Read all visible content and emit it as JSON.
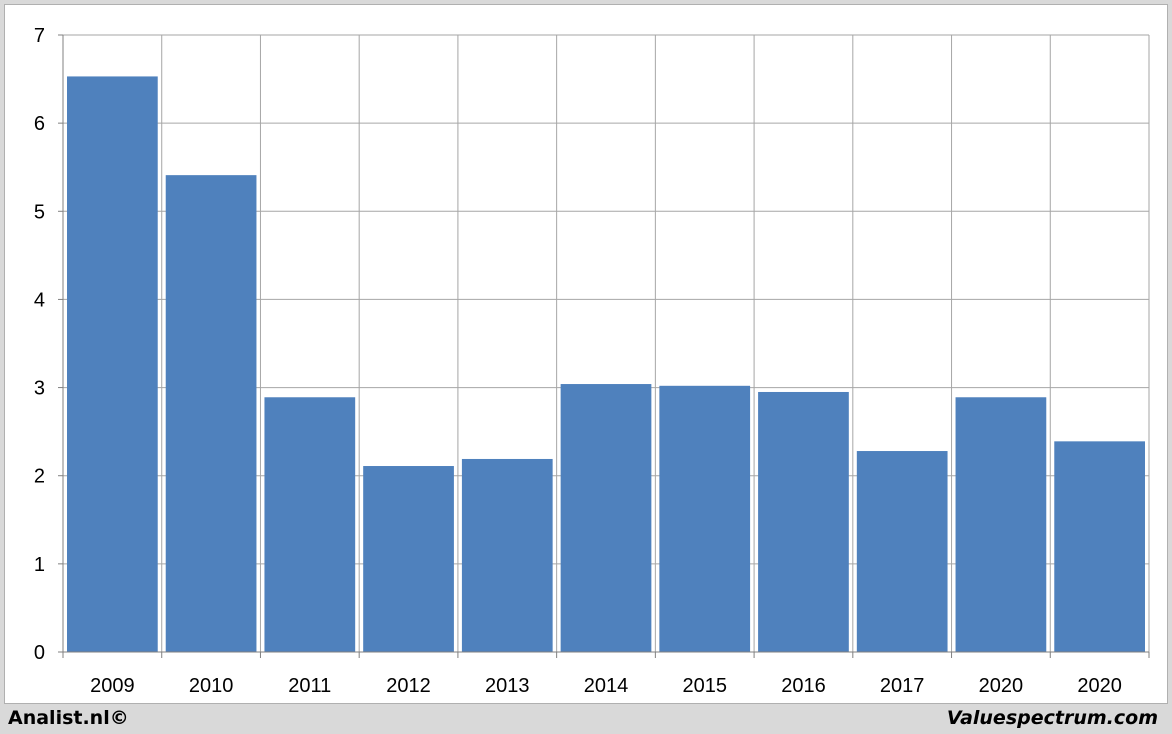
{
  "chart_data": {
    "type": "bar",
    "categories": [
      "2009",
      "2010",
      "2011",
      "2012",
      "2013",
      "2014",
      "2015",
      "2016",
      "2017",
      "2020",
      "2020"
    ],
    "values": [
      6.53,
      5.41,
      2.89,
      2.11,
      2.19,
      3.04,
      3.02,
      2.95,
      2.28,
      2.89,
      2.39
    ],
    "title": "",
    "xlabel": "",
    "ylabel": "",
    "ylim": [
      0,
      7
    ],
    "yticks": [
      0,
      1,
      2,
      3,
      4,
      5,
      6,
      7
    ],
    "grid": true,
    "legend": "none",
    "bar_color": "#4f81bd",
    "grid_color": "#a6a6a6"
  },
  "footer": {
    "left": "Analist.nl©",
    "right": "Valuespectrum.com"
  }
}
